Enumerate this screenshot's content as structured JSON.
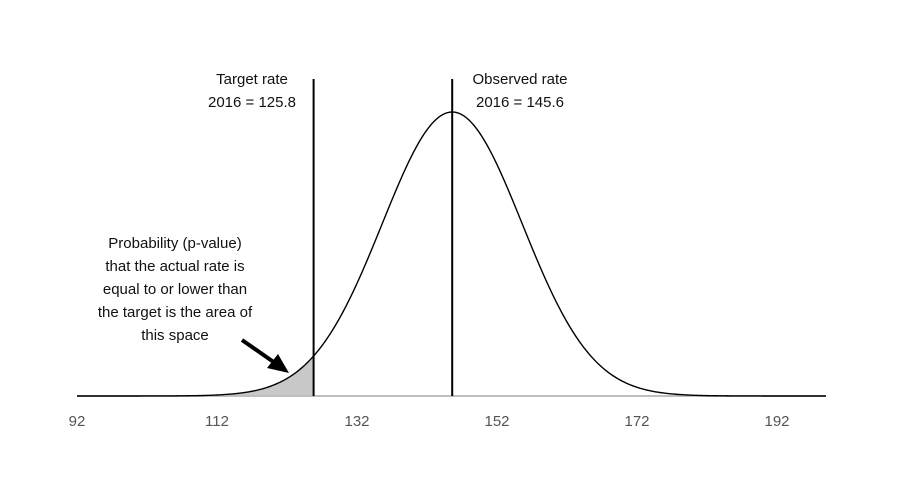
{
  "chart_data": {
    "type": "area",
    "distribution": "normal",
    "mean": 145.6,
    "sd": 10,
    "xlim": [
      92,
      199
    ],
    "x_ticks": [
      92,
      112,
      132,
      152,
      172,
      192
    ],
    "shaded_region": {
      "from": 92,
      "to": 125.8
    },
    "grid": false,
    "legend": "none",
    "markers": [
      {
        "id": "target",
        "value": 125.8,
        "label_line1": "Target rate",
        "label_line2": "2016 = 125.8"
      },
      {
        "id": "observed",
        "value": 145.6,
        "label_line1": "Observed rate",
        "label_line2": "2016 = 145.6"
      }
    ],
    "annotation": {
      "lines": [
        "Probability (p-value)",
        "that the actual rate is",
        "equal to or lower than",
        "the target is the area of",
        "this space"
      ]
    },
    "colors": {
      "curve": "#000000",
      "shade": "#c8c8c8",
      "axis": "#bfbfbf",
      "tick_text": "#555555"
    }
  }
}
